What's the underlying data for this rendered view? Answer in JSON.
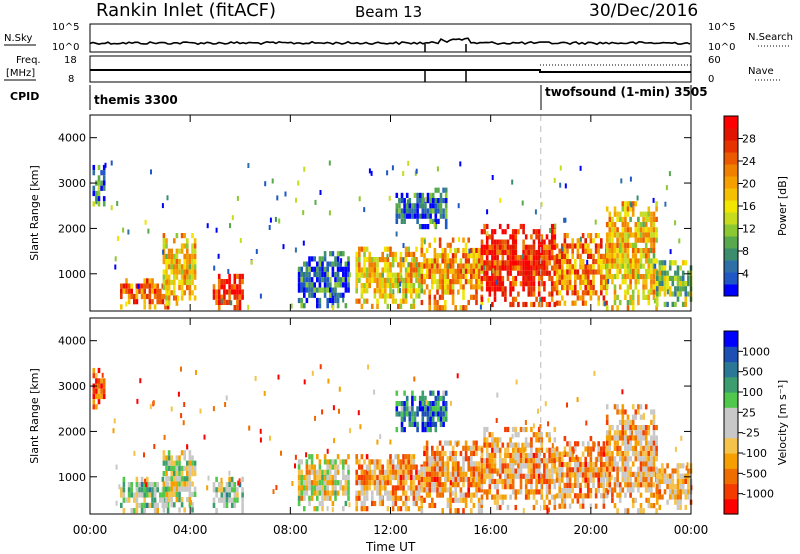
{
  "header": {
    "station": "Rankin Inlet (fitACF)",
    "beam": "Beam 13",
    "date": "30/Dec/2016"
  },
  "strips": {
    "nsky_label": "N.Sky",
    "nsky_ticks": [
      "10^5",
      "10^0"
    ],
    "nsearch_label": "N.Search",
    "nsearch_ticks": [
      "10^5",
      "10^0"
    ],
    "freq_label_line1": "Freq.",
    "freq_label_line2": "[MHz]",
    "freq_ticks": [
      "18",
      "8"
    ],
    "nave_label": "Nave",
    "nave_ticks": [
      "60",
      "0"
    ],
    "cpid_label": "CPID",
    "cpid_segments": [
      {
        "name": "themis 3300",
        "start_h": 0,
        "end_h": 18.0
      },
      {
        "name": "twofsound (1-min) 3505",
        "start_h": 18.0,
        "end_h": 24
      }
    ]
  },
  "x_axis": {
    "label": "Time UT",
    "ticks": [
      "00:00",
      "04:00",
      "08:00",
      "12:00",
      "16:00",
      "20:00",
      "00:00"
    ],
    "tick_hours": [
      0,
      4,
      8,
      12,
      16,
      20,
      24
    ]
  },
  "chart_data": [
    {
      "type": "heatmap",
      "title": "Power",
      "xlabel": "Time UT",
      "ylabel": "Slant Range [km]",
      "ylim": [
        180,
        4500
      ],
      "y_ticks": [
        "1000",
        "2000",
        "3000",
        "4000"
      ],
      "y_tick_values": [
        1000,
        2000,
        3000,
        4000
      ],
      "colorbar": {
        "label": "Power [dB]",
        "range": [
          0,
          32
        ],
        "tick_labels": [
          "4",
          "8",
          "12",
          "16",
          "20",
          "24",
          "28"
        ],
        "tick_values": [
          4,
          8,
          12,
          16,
          20,
          24,
          28
        ],
        "colors": [
          "#0000ff",
          "#1f58c4",
          "#2e6fa8",
          "#3c8c6e",
          "#58a84e",
          "#8cc832",
          "#c8dc1e",
          "#f0e600",
          "#f5c000",
          "#f5a000",
          "#f08000",
          "#eb5a00",
          "#e63200",
          "#e01400",
          "#ff0000"
        ]
      },
      "regions": [
        {
          "t0": 0.1,
          "t1": 0.6,
          "r0": 2500,
          "r1": 3400,
          "level": 0.2
        },
        {
          "t0": 1.2,
          "t1": 3.1,
          "r0": 300,
          "r1": 900,
          "level": 0.75
        },
        {
          "t0": 2.9,
          "t1": 4.2,
          "r0": 300,
          "r1": 1900,
          "level": 0.55
        },
        {
          "t0": 4.9,
          "t1": 6.1,
          "r0": 300,
          "r1": 1000,
          "level": 0.9
        },
        {
          "t0": 8.3,
          "t1": 10.3,
          "r0": 300,
          "r1": 1500,
          "level": 0.15
        },
        {
          "t0": 10.6,
          "t1": 13.2,
          "r0": 300,
          "r1": 1600,
          "level": 0.55
        },
        {
          "t0": 13.2,
          "t1": 15.6,
          "r0": 300,
          "r1": 1800,
          "level": 0.65
        },
        {
          "t0": 15.6,
          "t1": 18.6,
          "r0": 300,
          "r1": 2100,
          "level": 0.85
        },
        {
          "t0": 18.6,
          "t1": 20.6,
          "r0": 300,
          "r1": 1900,
          "level": 0.7
        },
        {
          "t0": 20.6,
          "t1": 22.6,
          "r0": 300,
          "r1": 2600,
          "level": 0.55
        },
        {
          "t0": 22.6,
          "t1": 24,
          "r0": 300,
          "r1": 1300,
          "level": 0.4
        },
        {
          "t0": 12.2,
          "t1": 14.2,
          "r0": 2000,
          "r1": 2900,
          "level": 0.15
        }
      ]
    },
    {
      "type": "heatmap",
      "title": "Velocity",
      "xlabel": "Time UT",
      "ylabel": "Slant Range [km]",
      "ylim": [
        180,
        4500
      ],
      "y_ticks": [
        "1000",
        "2000",
        "3000",
        "4000"
      ],
      "y_tick_values": [
        1000,
        2000,
        3000,
        4000
      ],
      "colorbar": {
        "label": "Velocity [m s⁻¹]",
        "range": [
          -1200,
          1200
        ],
        "tick_labels": [
          "1000",
          "500",
          "100",
          "25",
          "-25",
          "-100",
          "-500",
          "-1000"
        ],
        "colors": [
          "#ff0000",
          "#f53c00",
          "#f06e00",
          "#f5a000",
          "#f5c24a",
          "#c8c8c8",
          "#c8c8c8",
          "#50c84b",
          "#3c9e6e",
          "#2a7896",
          "#1e50b4",
          "#0000ff"
        ]
      },
      "regions": [
        {
          "t0": 0.1,
          "t1": 0.6,
          "r0": 2500,
          "r1": 3400,
          "level": 0.15
        },
        {
          "t0": 1.2,
          "t1": 3.1,
          "r0": 300,
          "r1": 1000,
          "level": 0.55
        },
        {
          "t0": 2.9,
          "t1": 4.2,
          "r0": 300,
          "r1": 1700,
          "level": 0.5
        },
        {
          "t0": 4.9,
          "t1": 6.1,
          "r0": 300,
          "r1": 1000,
          "level": 0.55
        },
        {
          "t0": 8.3,
          "t1": 10.3,
          "r0": 300,
          "r1": 1500,
          "level": 0.45
        },
        {
          "t0": 10.6,
          "t1": 13.2,
          "r0": 300,
          "r1": 1500,
          "level": 0.3
        },
        {
          "t0": 13.2,
          "t1": 15.6,
          "r0": 300,
          "r1": 1800,
          "level": 0.3
        },
        {
          "t0": 15.6,
          "t1": 18.6,
          "r0": 300,
          "r1": 2100,
          "level": 0.3
        },
        {
          "t0": 18.6,
          "t1": 20.6,
          "r0": 300,
          "r1": 1900,
          "level": 0.3
        },
        {
          "t0": 20.6,
          "t1": 22.6,
          "r0": 300,
          "r1": 2600,
          "level": 0.35
        },
        {
          "t0": 22.6,
          "t1": 24,
          "r0": 300,
          "r1": 1300,
          "level": 0.35
        },
        {
          "t0": 12.2,
          "t1": 14.2,
          "r0": 2000,
          "r1": 2900,
          "level": 0.8
        }
      ]
    }
  ]
}
